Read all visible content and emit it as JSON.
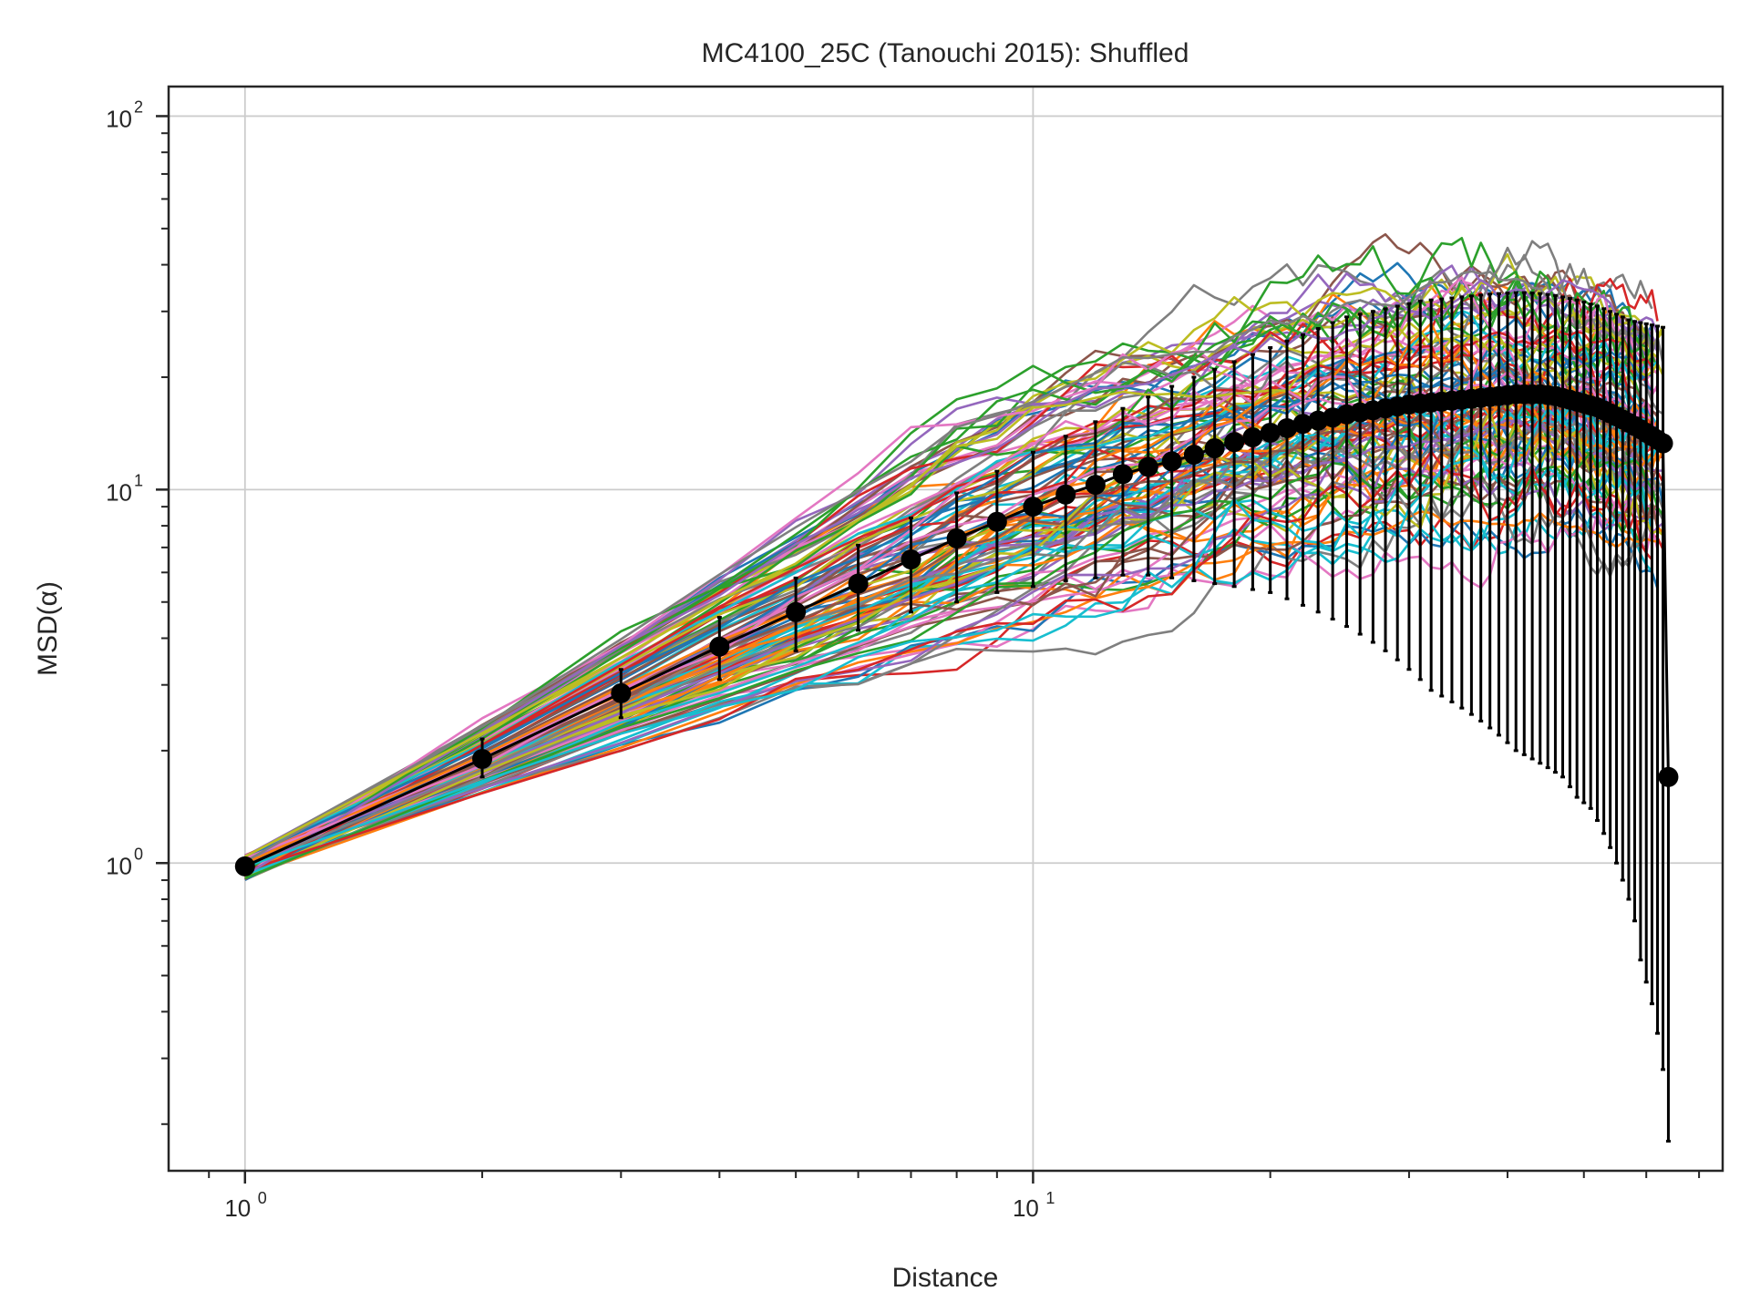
{
  "chart_data": {
    "type": "line",
    "title": "MC4100_25C (Tanouchi 2015): Shuffled",
    "xlabel": "Distance",
    "ylabel": "MSD(α)",
    "x_scale": "log",
    "y_scale": "log",
    "xlim": [
      0.8,
      75
    ],
    "ylim": [
      0.15,
      120
    ],
    "grid": true,
    "x_ticks": [
      {
        "base": "10",
        "exp": "0",
        "value": 1
      },
      {
        "base": "10",
        "exp": "1",
        "value": 10
      }
    ],
    "y_ticks": [
      {
        "base": "10",
        "exp": "0",
        "value": 1
      },
      {
        "base": "10",
        "exp": "1",
        "value": 10
      },
      {
        "base": "10",
        "exp": "2",
        "value": 100
      }
    ],
    "series_colors": [
      "#1f77b4",
      "#ff7f0e",
      "#2ca02c",
      "#d62728",
      "#9467bd",
      "#8c564b",
      "#e377c2",
      "#7f7f7f",
      "#bcbd22",
      "#17becf"
    ],
    "mean_series": {
      "color": "#000000",
      "x": [
        1,
        2,
        3,
        4,
        5,
        6,
        7,
        8,
        9,
        10,
        11,
        12,
        13,
        14,
        15,
        16,
        17,
        18,
        19,
        20,
        21,
        22,
        23,
        24,
        25,
        26,
        27,
        28,
        29,
        30,
        31,
        32,
        33,
        34,
        35,
        36,
        37,
        38,
        39,
        40,
        41,
        42,
        43,
        44,
        45,
        46,
        47,
        48,
        49,
        50,
        51,
        52,
        53,
        54,
        55,
        56,
        57,
        58,
        59,
        60,
        61,
        62,
        63,
        64
      ],
      "y": [
        0.98,
        1.9,
        2.85,
        3.8,
        4.7,
        5.6,
        6.5,
        7.4,
        8.2,
        9.0,
        9.7,
        10.3,
        11.0,
        11.5,
        11.9,
        12.4,
        12.9,
        13.4,
        13.8,
        14.2,
        14.6,
        15.0,
        15.3,
        15.6,
        15.9,
        16.1,
        16.3,
        16.5,
        16.7,
        16.9,
        17.0,
        17.1,
        17.2,
        17.3,
        17.4,
        17.5,
        17.6,
        17.7,
        17.8,
        17.9,
        18.0,
        18.0,
        18.0,
        18.0,
        17.9,
        17.8,
        17.6,
        17.4,
        17.2,
        17.0,
        16.8,
        16.6,
        16.3,
        16.0,
        15.7,
        15.4,
        15.1,
        14.8,
        14.5,
        14.2,
        13.9,
        13.6,
        13.3,
        1.7
      ],
      "err_low": [
        0.97,
        1.7,
        2.45,
        3.1,
        3.7,
        4.2,
        4.7,
        5.0,
        5.3,
        5.5,
        5.7,
        5.8,
        5.9,
        5.9,
        5.8,
        5.7,
        5.6,
        5.5,
        5.4,
        5.3,
        5.1,
        4.9,
        4.7,
        4.5,
        4.3,
        4.1,
        3.9,
        3.7,
        3.5,
        3.3,
        3.1,
        2.9,
        2.8,
        2.7,
        2.6,
        2.5,
        2.4,
        2.3,
        2.2,
        2.1,
        2.0,
        1.95,
        1.9,
        1.85,
        1.8,
        1.75,
        1.7,
        1.6,
        1.5,
        1.45,
        1.4,
        1.3,
        1.2,
        1.1,
        1.0,
        0.9,
        0.8,
        0.7,
        0.55,
        0.48,
        0.42,
        0.35,
        0.28,
        0.18
      ],
      "err_high": [
        0.99,
        2.15,
        3.3,
        4.55,
        5.8,
        7.1,
        8.4,
        9.8,
        11.2,
        12.6,
        13.9,
        15.2,
        16.5,
        17.7,
        18.9,
        20.0,
        21.0,
        22.0,
        23.0,
        24.0,
        25.0,
        26.0,
        27.0,
        28.0,
        29.0,
        29.5,
        30.0,
        30.5,
        31.0,
        31.5,
        32.0,
        32.2,
        32.4,
        32.6,
        32.8,
        33.0,
        33.2,
        33.4,
        33.5,
        33.6,
        33.7,
        33.7,
        33.6,
        33.5,
        33.3,
        33.1,
        32.8,
        32.5,
        32.2,
        31.8,
        31.4,
        31.0,
        30.5,
        30.0,
        29.5,
        29.0,
        28.5,
        28.2,
        28.0,
        27.8,
        27.6,
        27.4,
        27.2,
        1.7
      ]
    }
  }
}
